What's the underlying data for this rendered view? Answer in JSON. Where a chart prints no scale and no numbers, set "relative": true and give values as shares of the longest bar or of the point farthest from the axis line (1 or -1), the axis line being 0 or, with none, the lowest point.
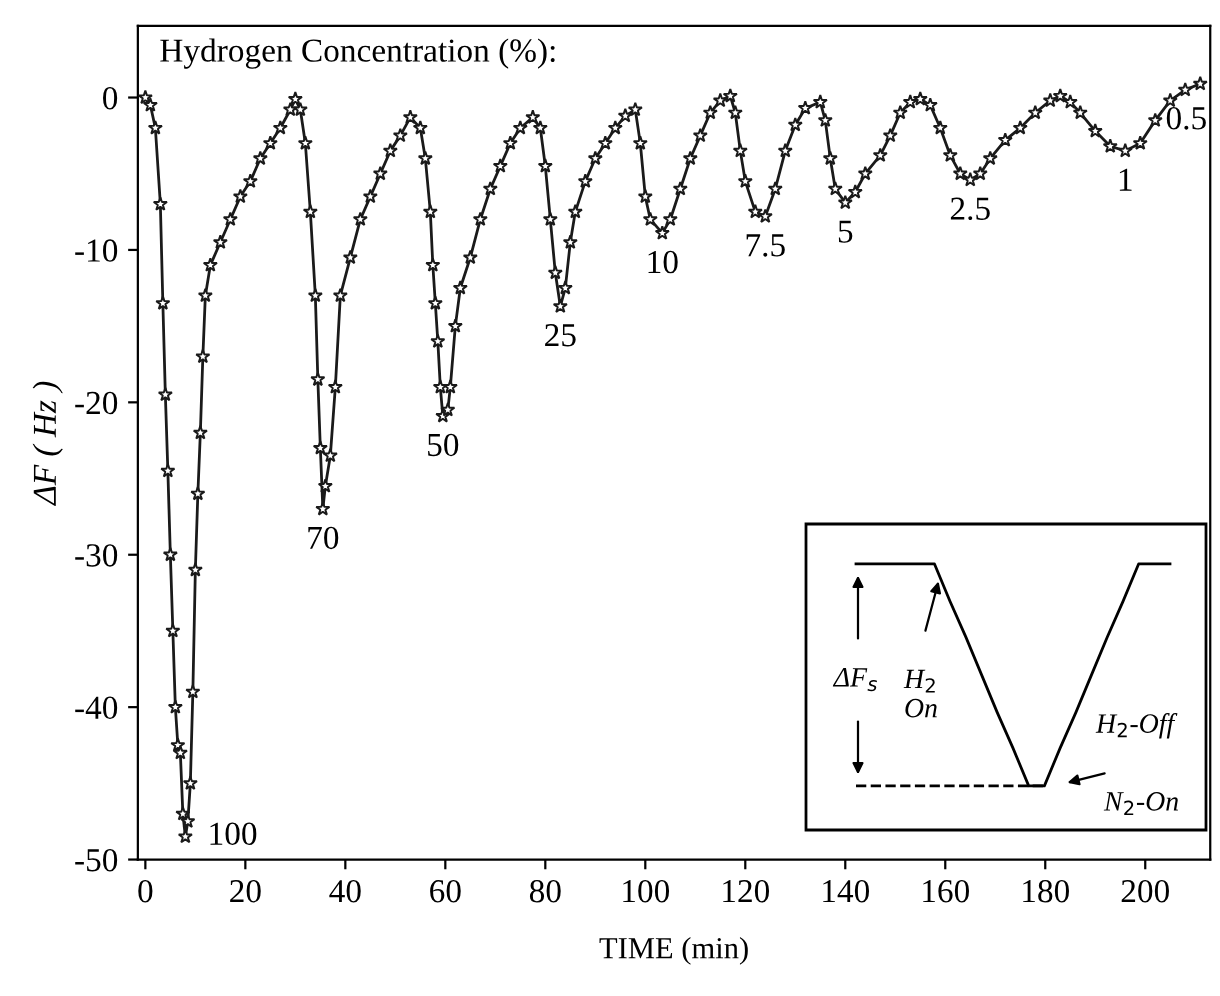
{
  "chart_data": [
    {
      "type": "line",
      "title": "Hydrogen Concentration (%):",
      "xlabel": "TIME (min)",
      "ylabel": "ΔF ( Hz )",
      "x": [
        0,
        1,
        2,
        3,
        3.5,
        4,
        4.5,
        5,
        5.5,
        6,
        6.5,
        7,
        7.5,
        8,
        8.5,
        9,
        9.5,
        10,
        10.5,
        11,
        11.5,
        12,
        13,
        15,
        17,
        19,
        21,
        23,
        25,
        27,
        29,
        30,
        31,
        32,
        33,
        34,
        34.5,
        35,
        35.5,
        36,
        37,
        38,
        39,
        41,
        43,
        45,
        47,
        49,
        51,
        53,
        55,
        56,
        57,
        57.5,
        58,
        58.5,
        59,
        59.5,
        60.5,
        61,
        62,
        63,
        65,
        67,
        69,
        71,
        73,
        75,
        77.5,
        79,
        80,
        81,
        82,
        83,
        84,
        85,
        86,
        88,
        90,
        92,
        94,
        96,
        98,
        99,
        100,
        101,
        103.4,
        105,
        107,
        109,
        111,
        113,
        115,
        117,
        118,
        119,
        120,
        122,
        124,
        126,
        128,
        130,
        132,
        135,
        136,
        137,
        138,
        140,
        142,
        144,
        147,
        149,
        151,
        153,
        155,
        157,
        159,
        161,
        163,
        165,
        167,
        169,
        172,
        175,
        178,
        181,
        183,
        185,
        187,
        190,
        193,
        196,
        199,
        202,
        205,
        208,
        211
      ],
      "series": [
        {
          "color": "#1a1a1a",
          "values": [
            0,
            -0.5,
            -2,
            -7,
            -13.5,
            -19.5,
            -24.5,
            -30,
            -35,
            -40,
            -42.5,
            -43,
            -47,
            -48.5,
            -47.5,
            -45,
            -39,
            -31,
            -26,
            -22,
            -17,
            -13,
            -11,
            -9.5,
            -8,
            -6.5,
            -5.5,
            -4,
            -3,
            -2,
            -0.8,
            -0.1,
            -0.8,
            -3,
            -7.5,
            -13,
            -18.5,
            -23,
            -27,
            -25.5,
            -23.5,
            -19,
            -13,
            -10.5,
            -8,
            -6.5,
            -5,
            -3.5,
            -2.5,
            -1.3,
            -2,
            -4,
            -7.5,
            -11,
            -13.5,
            -16,
            -19,
            -20.9,
            -20.5,
            -19,
            -15,
            -12.5,
            -10.5,
            -8,
            -6,
            -4.5,
            -3,
            -2,
            -1.3,
            -2,
            -4.5,
            -8,
            -11.5,
            -13.7,
            -12.5,
            -9.5,
            -7.5,
            -5.5,
            -4,
            -3,
            -2,
            -1.2,
            -0.8,
            -3,
            -6.5,
            -8,
            -8.9,
            -8,
            -6,
            -4,
            -2.5,
            -1,
            -0.2,
            0.1,
            -1,
            -3.5,
            -5.5,
            -7.5,
            -7.8,
            -6,
            -3.5,
            -1.8,
            -0.7,
            -0.3,
            -1.5,
            -4,
            -6,
            -6.9,
            -6.2,
            -5,
            -3.8,
            -2.5,
            -1,
            -0.3,
            -0.1,
            -0.5,
            -2,
            -3.8,
            -5,
            -5.4,
            -5,
            -4,
            -2.8,
            -2,
            -1,
            -0.2,
            0.1,
            -0.3,
            -1,
            -2.2,
            -3.2,
            -3.5,
            -3,
            -1.5,
            -0.2,
            0.5,
            0.9
          ]
        }
      ],
      "xlim": [
        -1.5,
        213
      ],
      "ylim": [
        -50,
        4.7
      ],
      "xticks": [
        0,
        20,
        40,
        60,
        80,
        100,
        120,
        140,
        160,
        180,
        200
      ],
      "yticks": [
        0,
        -10,
        -20,
        -30,
        -40,
        -50
      ],
      "marker": "star",
      "line_style": "solid",
      "legend": false,
      "annotations": [
        {
          "text": "100",
          "x": 8,
          "y": -48.5
        },
        {
          "text": "70",
          "x": 35.5,
          "y": -27
        },
        {
          "text": "50",
          "x": 59.5,
          "y": -20.9
        },
        {
          "text": "25",
          "x": 83,
          "y": -13.7
        },
        {
          "text": "10",
          "x": 103.4,
          "y": -8.9
        },
        {
          "text": "7.5",
          "x": 124,
          "y": -7.8
        },
        {
          "text": "5",
          "x": 140,
          "y": -6.9
        },
        {
          "text": "2.5",
          "x": 165,
          "y": -5.4
        },
        {
          "text": "1",
          "x": 196,
          "y": -3.5
        },
        {
          "text": "0.5",
          "x": 211,
          "y": 0.9
        }
      ]
    },
    {
      "type": "line",
      "relative": true,
      "tick_labels": false,
      "categories": [
        null,
        null,
        null,
        null,
        null,
        null,
        null,
        null,
        null,
        null,
        null,
        null,
        null,
        null,
        null,
        null,
        null,
        null,
        null,
        null,
        null
      ],
      "series": [
        {
          "color": "#000000",
          "values": [
            1,
            1,
            1,
            1,
            1,
            1,
            0.83,
            0.67,
            0.5,
            0.33,
            0.17,
            0,
            0,
            0.17,
            0.33,
            0.5,
            0.67,
            0.83,
            1,
            1,
            1
          ]
        },
        {
          "color": "#000000",
          "line_style": "dashed",
          "values": [
            0,
            0,
            0,
            0,
            0,
            0,
            0,
            0,
            0,
            0,
            0,
            0,
            0,
            null,
            null,
            null,
            null,
            null,
            null,
            null,
            null
          ]
        }
      ],
      "line_style": "solid",
      "annotations": [
        "ΔF$_{s}$",
        "H$_{2}$\nOn",
        "H$_{2}$-Off",
        "N$_{2}$-On"
      ]
    }
  ]
}
